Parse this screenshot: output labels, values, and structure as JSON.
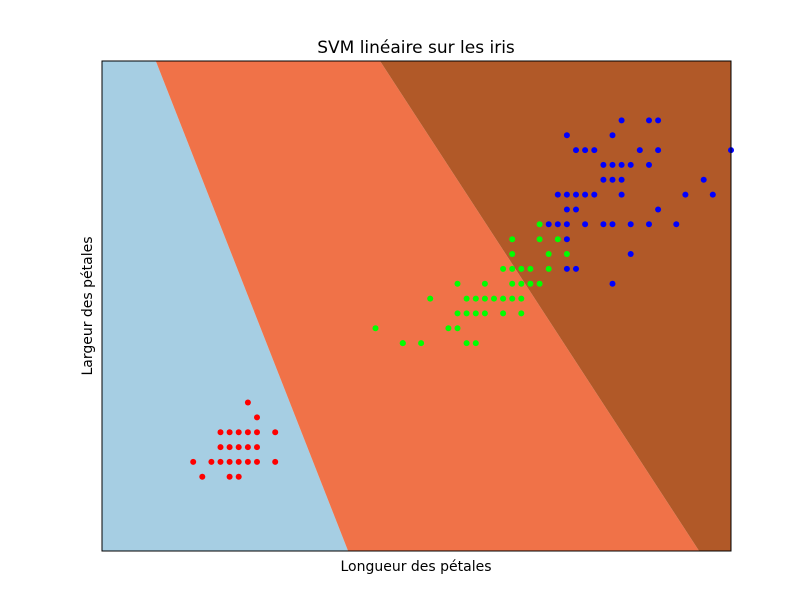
{
  "chart_data": {
    "type": "scatter",
    "title": "SVM linéaire sur les iris",
    "xlabel": "Longueur des pétales",
    "ylabel": "Largeur des pétales",
    "xlim": [
      0.0,
      6.9
    ],
    "ylim": [
      -0.4,
      2.9
    ],
    "ticks_visible": false,
    "grid": false,
    "legend": "none",
    "regions": [
      {
        "name": "",
        "color": "#a6cee3",
        "polygon": [
          [
            0.0,
            2.9
          ],
          [
            0.59,
            2.9
          ],
          [
            2.7,
            -0.4
          ],
          [
            0.0,
            -0.4
          ]
        ]
      },
      {
        "name": "",
        "color": "#f07248",
        "polygon": [
          [
            0.59,
            2.9
          ],
          [
            3.05,
            2.9
          ],
          [
            6.55,
            -0.4
          ],
          [
            2.7,
            -0.4
          ]
        ]
      },
      {
        "name": "",
        "color": "#b15928",
        "polygon": [
          [
            3.05,
            2.9
          ],
          [
            6.9,
            2.9
          ],
          [
            6.9,
            -0.4
          ],
          [
            6.55,
            -0.4
          ]
        ]
      }
    ],
    "series": [
      {
        "color": "#ff0000",
        "points": [
          [
            1.1,
            0.1
          ],
          [
            1.0,
            0.2
          ],
          [
            1.2,
            0.2
          ],
          [
            1.3,
            0.2
          ],
          [
            1.4,
            0.2
          ],
          [
            1.5,
            0.2
          ],
          [
            1.6,
            0.2
          ],
          [
            1.7,
            0.2
          ],
          [
            1.4,
            0.1
          ],
          [
            1.5,
            0.1
          ],
          [
            1.4,
            0.3
          ],
          [
            1.5,
            0.3
          ],
          [
            1.6,
            0.3
          ],
          [
            1.7,
            0.3
          ],
          [
            1.4,
            0.4
          ],
          [
            1.5,
            0.4
          ],
          [
            1.6,
            0.4
          ],
          [
            1.7,
            0.4
          ],
          [
            1.3,
            0.4
          ],
          [
            1.9,
            0.4
          ],
          [
            1.9,
            0.2
          ],
          [
            1.6,
            0.6
          ],
          [
            1.7,
            0.5
          ],
          [
            1.3,
            0.3
          ]
        ]
      },
      {
        "color": "#00ff00",
        "points": [
          [
            3.0,
            1.1
          ],
          [
            3.3,
            1.0
          ],
          [
            3.5,
            1.0
          ],
          [
            3.3,
            1.0
          ],
          [
            3.9,
            1.1
          ],
          [
            3.6,
            1.3
          ],
          [
            3.9,
            1.2
          ],
          [
            4.0,
            1.0
          ],
          [
            4.1,
            1.0
          ],
          [
            4.0,
            1.3
          ],
          [
            4.1,
            1.3
          ],
          [
            4.0,
            1.2
          ],
          [
            3.9,
            1.4
          ],
          [
            3.8,
            1.1
          ],
          [
            4.1,
            1.2
          ],
          [
            4.2,
            1.3
          ],
          [
            4.3,
            1.3
          ],
          [
            4.4,
            1.3
          ],
          [
            4.5,
            1.3
          ],
          [
            4.6,
            1.3
          ],
          [
            4.2,
            1.2
          ],
          [
            4.4,
            1.2
          ],
          [
            4.6,
            1.2
          ],
          [
            4.2,
            1.4
          ],
          [
            4.5,
            1.4
          ],
          [
            4.6,
            1.4
          ],
          [
            4.7,
            1.4
          ],
          [
            4.8,
            1.4
          ],
          [
            4.5,
            1.5
          ],
          [
            4.9,
            1.5
          ],
          [
            4.7,
            1.5
          ],
          [
            4.4,
            1.5
          ],
          [
            4.8,
            1.8
          ],
          [
            4.5,
            1.6
          ],
          [
            4.6,
            1.5
          ],
          [
            4.9,
            1.6
          ],
          [
            5.0,
            1.7
          ],
          [
            5.1,
            1.6
          ],
          [
            4.5,
            1.7
          ],
          [
            4.8,
            1.7
          ]
        ]
      },
      {
        "color": "#0000ff",
        "points": [
          [
            5.9,
            2.3
          ],
          [
            5.8,
            2.2
          ],
          [
            5.7,
            2.2
          ],
          [
            5.1,
            2.4
          ],
          [
            5.2,
            2.3
          ],
          [
            5.3,
            2.3
          ],
          [
            5.4,
            2.3
          ],
          [
            5.6,
            2.4
          ],
          [
            5.7,
            2.1
          ],
          [
            5.6,
            2.1
          ],
          [
            5.0,
            2.0
          ],
          [
            5.1,
            2.0
          ],
          [
            5.2,
            2.0
          ],
          [
            5.3,
            2.0
          ],
          [
            5.1,
            1.9
          ],
          [
            5.2,
            1.9
          ],
          [
            5.3,
            1.8
          ],
          [
            5.0,
            1.8
          ],
          [
            5.1,
            1.8
          ],
          [
            4.9,
            1.8
          ],
          [
            5.6,
            1.8
          ],
          [
            5.8,
            1.8
          ],
          [
            6.0,
            1.8
          ],
          [
            6.3,
            1.8
          ],
          [
            6.1,
            1.9
          ],
          [
            6.7,
            2.0
          ],
          [
            6.4,
            2.0
          ],
          [
            6.6,
            2.1
          ],
          [
            6.9,
            2.3
          ],
          [
            5.5,
            2.1
          ],
          [
            5.7,
            2.0
          ],
          [
            5.6,
            1.4
          ],
          [
            5.8,
            1.6
          ],
          [
            5.1,
            1.5
          ],
          [
            5.2,
            1.5
          ],
          [
            5.1,
            1.7
          ],
          [
            6.1,
            2.3
          ],
          [
            6.0,
            2.2
          ],
          [
            5.5,
            2.2
          ],
          [
            5.4,
            2.0
          ],
          [
            5.7,
            2.5
          ],
          [
            6.0,
            2.5
          ],
          [
            6.1,
            2.5
          ],
          [
            5.5,
            1.8
          ],
          [
            5.6,
            2.2
          ]
        ]
      }
    ]
  }
}
